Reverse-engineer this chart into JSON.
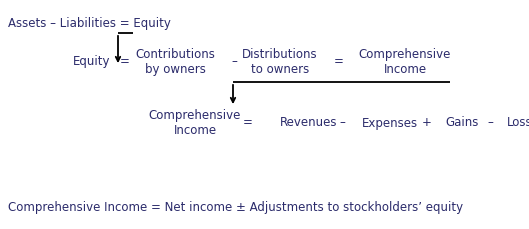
{
  "bg_color": "#ffffff",
  "text_color": "#2b2b6b",
  "operator_color": "#2b2b6b",
  "figsize": [
    5.29,
    2.3
  ],
  "dpi": 100,
  "line1": "Assets – Liabilities = Equity",
  "line2_equity": "Equity",
  "line2_eq1": "=",
  "line2_contrib": "Contributions\nby owners",
  "line2_minus1": "–",
  "line2_distrib": "Distributions\nto owners",
  "line2_eq2": "=",
  "line2_comp": "Comprehensive\nIncome",
  "line3_comp": "Comprehensive\nIncome",
  "line3_eq": "=",
  "line3_rev": "Revenues",
  "line3_minus2": "–",
  "line3_exp": "Expenses",
  "line3_plus": "+",
  "line3_gains": "Gains",
  "line3_minus3": "–",
  "line3_losses": "Losses",
  "line4": "Comprehensive Income = Net income ± Adjustments to stockholders’ equity",
  "font_size": 8.5,
  "arrow_color": "#000000"
}
